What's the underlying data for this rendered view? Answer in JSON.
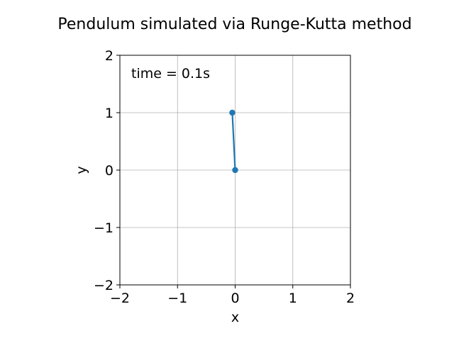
{
  "chart_data": {
    "type": "line",
    "title": "Pendulum simulated via Runge-Kutta method",
    "xlabel": "x",
    "ylabel": "y",
    "xlim": [
      -2,
      2
    ],
    "ylim": [
      -2,
      2
    ],
    "x_ticks": [
      "−2",
      "−1",
      "0",
      "1",
      "2"
    ],
    "y_ticks": [
      "−2",
      "−1",
      "0",
      "1",
      "2"
    ],
    "x_tick_values": [
      -2,
      -1,
      0,
      1,
      2
    ],
    "y_tick_values": [
      -2,
      -1,
      0,
      1,
      2
    ],
    "grid": true,
    "annotation": "time = 0.1s",
    "series": [
      {
        "points": [
          {
            "x": 0.0,
            "y": 0.0
          },
          {
            "x": -0.05,
            "y": 1.0
          }
        ],
        "color": "#1f77b4",
        "marker": "circle"
      }
    ]
  }
}
